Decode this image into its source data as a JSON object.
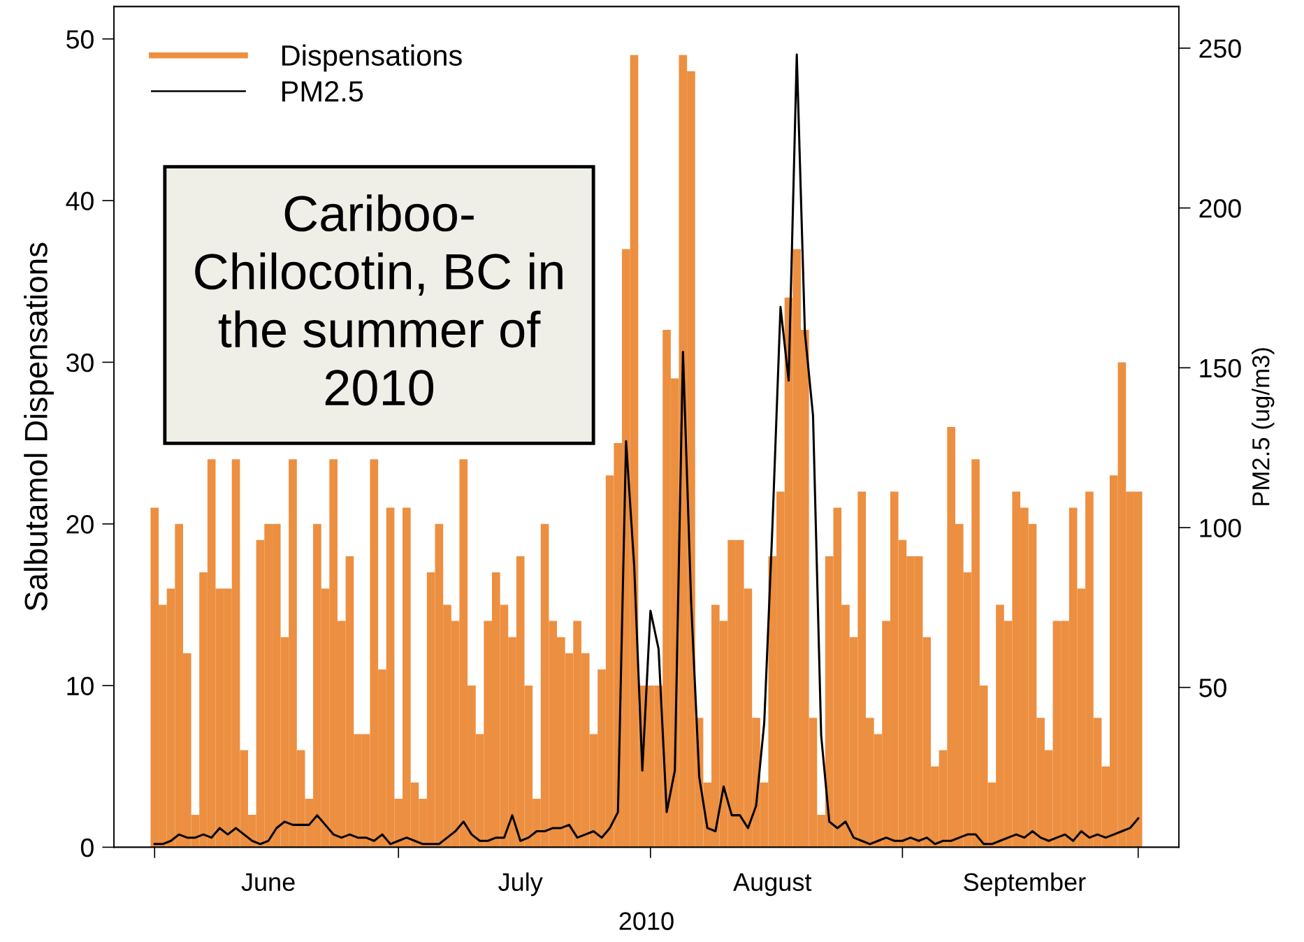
{
  "chart_data": {
    "type": "bar",
    "xlabel": "2010",
    "ylabel": "Salbutamol Dispensations",
    "y2label": "PM2.5 (ug/m3)",
    "x": [
      "2010-06-01",
      "2010-06-02",
      "2010-06-03",
      "2010-06-04",
      "2010-06-05",
      "2010-06-06",
      "2010-06-07",
      "2010-06-08",
      "2010-06-09",
      "2010-06-10",
      "2010-06-11",
      "2010-06-12",
      "2010-06-13",
      "2010-06-14",
      "2010-06-15",
      "2010-06-16",
      "2010-06-17",
      "2010-06-18",
      "2010-06-19",
      "2010-06-20",
      "2010-06-21",
      "2010-06-22",
      "2010-06-23",
      "2010-06-24",
      "2010-06-25",
      "2010-06-26",
      "2010-06-27",
      "2010-06-28",
      "2010-06-29",
      "2010-06-30",
      "2010-07-01",
      "2010-07-02",
      "2010-07-03",
      "2010-07-04",
      "2010-07-05",
      "2010-07-06",
      "2010-07-07",
      "2010-07-08",
      "2010-07-09",
      "2010-07-10",
      "2010-07-11",
      "2010-07-12",
      "2010-07-13",
      "2010-07-14",
      "2010-07-15",
      "2010-07-16",
      "2010-07-17",
      "2010-07-18",
      "2010-07-19",
      "2010-07-20",
      "2010-07-21",
      "2010-07-22",
      "2010-07-23",
      "2010-07-24",
      "2010-07-25",
      "2010-07-26",
      "2010-07-27",
      "2010-07-28",
      "2010-07-29",
      "2010-07-30",
      "2010-07-31",
      "2010-08-01",
      "2010-08-02",
      "2010-08-03",
      "2010-08-04",
      "2010-08-05",
      "2010-08-06",
      "2010-08-07",
      "2010-08-08",
      "2010-08-09",
      "2010-08-10",
      "2010-08-11",
      "2010-08-12",
      "2010-08-13",
      "2010-08-14",
      "2010-08-15",
      "2010-08-16",
      "2010-08-17",
      "2010-08-18",
      "2010-08-19",
      "2010-08-20",
      "2010-08-21",
      "2010-08-22",
      "2010-08-23",
      "2010-08-24",
      "2010-08-25",
      "2010-08-26",
      "2010-08-27",
      "2010-08-28",
      "2010-08-29",
      "2010-08-30",
      "2010-08-31",
      "2010-09-01",
      "2010-09-02",
      "2010-09-03",
      "2010-09-04",
      "2010-09-05",
      "2010-09-06",
      "2010-09-07",
      "2010-09-08",
      "2010-09-09",
      "2010-09-10",
      "2010-09-11",
      "2010-09-12",
      "2010-09-13",
      "2010-09-14",
      "2010-09-15",
      "2010-09-16",
      "2010-09-17",
      "2010-09-18",
      "2010-09-19",
      "2010-09-20",
      "2010-09-21",
      "2010-09-22",
      "2010-09-23",
      "2010-09-24",
      "2010-09-25",
      "2010-09-26",
      "2010-09-27",
      "2010-09-28",
      "2010-09-29",
      "2010-09-30"
    ],
    "series": [
      {
        "name": "Dispensations",
        "color": "#ec8f40",
        "values": [
          21,
          15,
          16,
          20,
          12,
          2,
          17,
          24,
          16,
          16,
          24,
          6,
          2,
          19,
          20,
          20,
          13,
          24,
          6,
          3,
          20,
          16,
          24,
          14,
          18,
          7,
          7,
          24,
          11,
          21,
          3,
          21,
          4,
          3,
          17,
          20,
          15,
          14,
          24,
          10,
          7,
          14,
          17,
          15,
          13,
          18,
          10,
          3,
          20,
          14,
          13,
          12,
          14,
          12,
          7,
          11,
          23,
          25,
          37,
          49,
          10,
          10,
          10,
          32,
          29,
          49,
          48,
          8,
          4,
          15,
          14,
          19,
          19,
          16,
          8,
          4,
          18,
          22,
          34,
          37,
          32,
          8,
          2,
          18,
          21,
          15,
          13,
          22,
          8,
          7,
          14,
          22,
          19,
          18,
          18,
          13,
          5,
          6,
          26,
          20,
          17,
          24,
          10,
          4,
          15,
          14,
          22,
          21,
          20,
          8,
          6,
          14,
          14,
          21,
          16,
          22,
          8,
          5,
          23,
          30,
          22,
          22
        ]
      },
      {
        "name": "PM2.5",
        "type": "line",
        "axis": "y2",
        "color": "#000000",
        "values": [
          1,
          1,
          2,
          4,
          3,
          3,
          4,
          3,
          6,
          4,
          6,
          4,
          2,
          1,
          2,
          6,
          8,
          7,
          7,
          7,
          10,
          7,
          4,
          3,
          4,
          3,
          3,
          2,
          4,
          1,
          2,
          3,
          2,
          1,
          1,
          1,
          3,
          5,
          8,
          4,
          2,
          2,
          3,
          3,
          10,
          2,
          3,
          5,
          5,
          6,
          6,
          7,
          3,
          4,
          5,
          3,
          6,
          11,
          127,
          88,
          24,
          74,
          62,
          11,
          24,
          155,
          77,
          22,
          6,
          5,
          19,
          10,
          10,
          6,
          13,
          39,
          100,
          169,
          146,
          248,
          161,
          135,
          35,
          8,
          6,
          8,
          3,
          2,
          1,
          2,
          3,
          2,
          2,
          3,
          2,
          3,
          1,
          2,
          2,
          3,
          4,
          4,
          1,
          1,
          2,
          3,
          4,
          3,
          5,
          3,
          2,
          3,
          4,
          2,
          5,
          3,
          4,
          3,
          4,
          5,
          6,
          9
        ]
      }
    ],
    "xlim": [
      "2010-05-27",
      "2010-10-05"
    ],
    "xticks": [
      {
        "value": "2010-06-01",
        "label": null
      },
      {
        "value": "2010-07-01",
        "label": null
      },
      {
        "value": "2010-08-01",
        "label": null
      },
      {
        "value": "2010-09-01",
        "label": null
      },
      {
        "value": "2010-09-30",
        "label": null
      },
      {
        "value": "2010-06-15",
        "label": "June"
      },
      {
        "value": "2010-07-16",
        "label": "July"
      },
      {
        "value": "2010-08-16",
        "label": "August"
      },
      {
        "value": "2010-09-16",
        "label": "September"
      }
    ],
    "ylim": [
      0,
      52
    ],
    "yticks": [
      0,
      10,
      20,
      30,
      40,
      50
    ],
    "y2lim": [
      0,
      263
    ],
    "y2ticks": [
      50,
      100,
      150,
      200,
      250
    ],
    "grid": false,
    "legend": "top left",
    "annotations": [
      "Cariboo-\nChilocotin, BC in\nthe summer of\n2010"
    ]
  }
}
